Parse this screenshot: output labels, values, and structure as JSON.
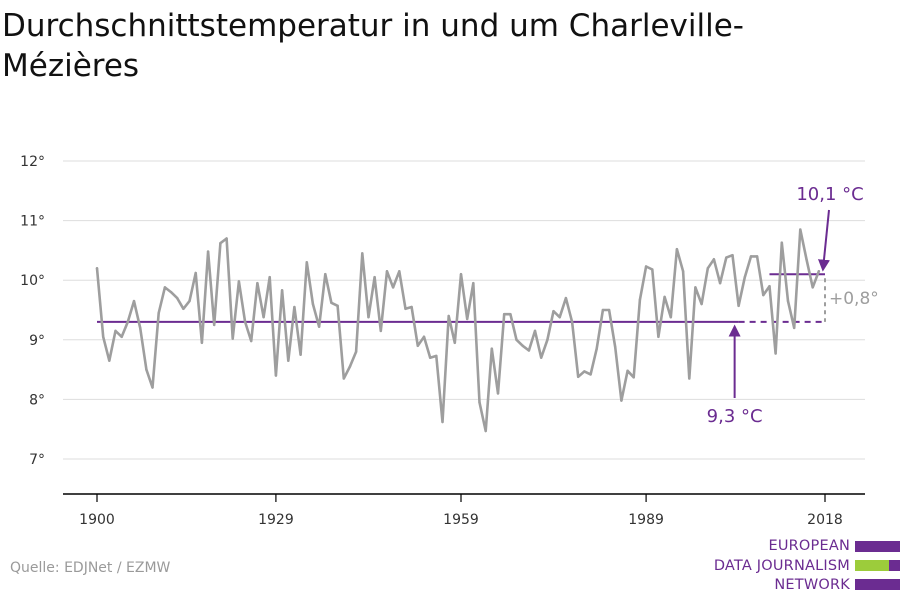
{
  "title": "Durchschnittstemperatur in und um Charleville-Mézières",
  "source": "Quelle: EDJNet / EZMW",
  "logo": {
    "line1": "EUROPEAN",
    "line2": "DATA JOURNALISM",
    "line3": "NETWORK"
  },
  "colors": {
    "series": "#9e9e9e",
    "accent": "#6b2c91",
    "grid": "#dddddd",
    "axis": "#000000",
    "logo_green": "#9ccc3b"
  },
  "chart_data": {
    "type": "line",
    "title": "Durchschnittstemperatur in und um Charleville-Mézières",
    "xlabel": "",
    "ylabel": "",
    "xlim": [
      1900,
      2018
    ],
    "ylim": [
      7,
      12
    ],
    "x_ticks": [
      1900,
      1929,
      1959,
      1989,
      2018
    ],
    "y_ticks": [
      7,
      8,
      9,
      10,
      11,
      12
    ],
    "y_tick_labels": [
      "7°",
      "8°",
      "9°",
      "10°",
      "11°",
      "12°"
    ],
    "grid": true,
    "series": [
      {
        "values": [
          10.2,
          9.05,
          8.65,
          9.15,
          9.05,
          9.3,
          9.65,
          9.2,
          8.5,
          8.2,
          9.45,
          9.88,
          9.8,
          9.7,
          9.52,
          9.65,
          10.12,
          8.95,
          10.48,
          9.25,
          10.62,
          10.7,
          9.02,
          9.98,
          9.3,
          8.98,
          9.95,
          9.38,
          10.05,
          8.4,
          9.83,
          8.65,
          9.55,
          8.75,
          10.3,
          9.6,
          9.22,
          10.1,
          9.62,
          9.57,
          8.35,
          8.55,
          8.8,
          10.45,
          9.38,
          10.05,
          9.15,
          10.15,
          9.88,
          10.15,
          9.52,
          9.55,
          8.9,
          9.05,
          8.7,
          8.73,
          7.62,
          9.4,
          8.95,
          10.1,
          9.35,
          9.95,
          7.95,
          7.47,
          8.85,
          8.1,
          9.43,
          9.43,
          9.0,
          8.9,
          8.82,
          9.15,
          8.7,
          9.0,
          9.48,
          9.38,
          9.7,
          9.3,
          8.38,
          8.47,
          8.42,
          8.85,
          9.5,
          9.5,
          8.88,
          7.98,
          8.48,
          8.37,
          9.67,
          10.23,
          10.18,
          9.05,
          9.72,
          9.38,
          10.52,
          10.15,
          8.35,
          9.88,
          9.6,
          10.2,
          10.35,
          9.95,
          10.38,
          10.42,
          9.57,
          10.05,
          10.4,
          10.4,
          9.75,
          9.9,
          8.77,
          10.63,
          9.65,
          9.2,
          10.85,
          10.35,
          9.88,
          10.15
        ]
      }
    ],
    "reference_lines": [
      {
        "value": 9.3,
        "label": "9,3 °C",
        "x_start": 1900,
        "x_solid_end": 2004,
        "x_end": 2018
      },
      {
        "value": 10.1,
        "label": "10,1 °C",
        "x_start": 2009,
        "x_end": 2018
      }
    ],
    "difference_label": "+0,8°"
  }
}
